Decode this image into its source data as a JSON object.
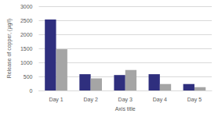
{
  "chart_data": {
    "type": "bar",
    "categories": [
      "Day 1",
      "Day 2",
      "Day 3",
      "Day 4",
      "Day 5"
    ],
    "series": [
      {
        "color": "#2f2f7e",
        "values": [
          2530,
          580,
          550,
          580,
          230
        ]
      },
      {
        "color": "#a5a5a5",
        "values": [
          1470,
          430,
          730,
          230,
          120
        ]
      }
    ],
    "x_label": "Axis title",
    "y_label": "Release of copper, (µg/l)",
    "ylim": [
      0,
      3000
    ],
    "yticks": [
      0,
      500,
      1000,
      1500,
      2000,
      2500,
      3000
    ],
    "grid": true
  }
}
